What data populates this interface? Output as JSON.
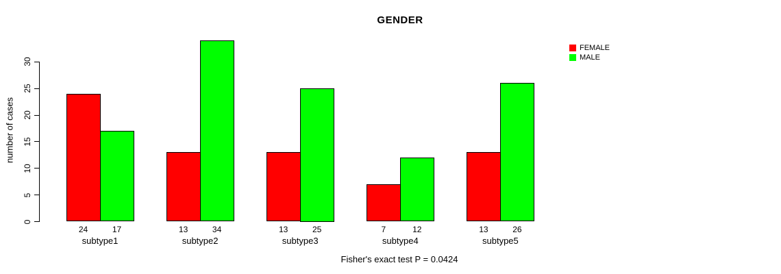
{
  "chart_data": {
    "type": "bar",
    "title": "GENDER",
    "xlabel": "",
    "ylabel": "number of cases",
    "categories": [
      "subtype1",
      "subtype2",
      "subtype3",
      "subtype4",
      "subtype5"
    ],
    "series": [
      {
        "name": "FEMALE",
        "color": "#FF0000",
        "values": [
          24,
          13,
          13,
          7,
          13
        ]
      },
      {
        "name": "MALE",
        "color": "#00FF00",
        "values": [
          17,
          34,
          25,
          12,
          26
        ]
      }
    ],
    "yticks": [
      0,
      5,
      10,
      15,
      20,
      25,
      30
    ],
    "ylim": [
      0,
      34
    ],
    "grid": false,
    "legend_position": "top-right",
    "bar_value_labels_shown": true,
    "caption": "Fisher's exact test P = 0.0424"
  },
  "colors": {
    "background": "#FFFFFF",
    "axis": "#000000",
    "text": "#000000",
    "bar_border": "#000000"
  }
}
